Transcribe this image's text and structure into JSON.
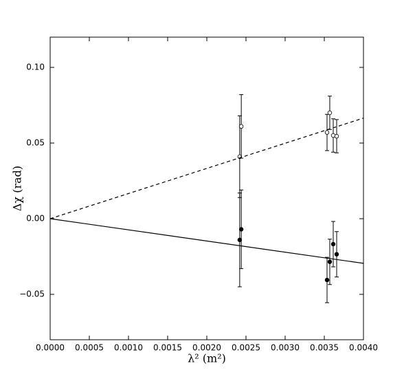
{
  "chart_data": {
    "type": "scatter",
    "xlabel": "λ² (m²)",
    "ylabel": "Δχ (rad)",
    "xlim": [
      0,
      0.004
    ],
    "ylim": [
      -0.08,
      0.12
    ],
    "xticks": [
      {
        "value": 0,
        "label": "0.0000"
      },
      {
        "value": 0.0005,
        "label": "0.0005"
      },
      {
        "value": 0.001,
        "label": "0.0010"
      },
      {
        "value": 0.0015,
        "label": "0.0015"
      },
      {
        "value": 0.002,
        "label": "0.0020"
      },
      {
        "value": 0.0025,
        "label": "0.0025"
      },
      {
        "value": 0.003,
        "label": "0.0030"
      },
      {
        "value": 0.0035,
        "label": "0.0035"
      },
      {
        "value": 0.004,
        "label": "0.0040"
      }
    ],
    "yticks": [
      {
        "value": -0.05,
        "label": "−0.05"
      },
      {
        "value": 0,
        "label": "0.00"
      },
      {
        "value": 0.05,
        "label": "0.05"
      },
      {
        "value": 0.1,
        "label": "0.10"
      }
    ],
    "color": "#000000",
    "series": [
      {
        "marker": "open",
        "x": [
          0.00242,
          0.00244,
          0.003535,
          0.00357,
          0.003614,
          0.003658
        ],
        "values": [
          0.041,
          0.061,
          0.057,
          0.07,
          0.055,
          0.0545
        ],
        "errors": [
          0.027,
          0.021,
          0.012,
          0.011,
          0.011,
          0.011
        ]
      },
      {
        "marker": "filled",
        "x": [
          0.00242,
          0.00244,
          0.003535,
          0.00357,
          0.003614,
          0.003658
        ],
        "values": [
          -0.014,
          -0.007,
          -0.0405,
          -0.0285,
          -0.0168,
          -0.0235
        ],
        "errors": [
          0.031,
          0.026,
          0.015,
          0.015,
          0.015,
          0.015
        ]
      },
      {
        "line": "dashed",
        "x": [
          0,
          0.004
        ],
        "values": [
          0,
          0.0665
        ]
      },
      {
        "line": "solid",
        "x": [
          0,
          0.004
        ],
        "values": [
          0,
          -0.0295
        ]
      }
    ]
  }
}
